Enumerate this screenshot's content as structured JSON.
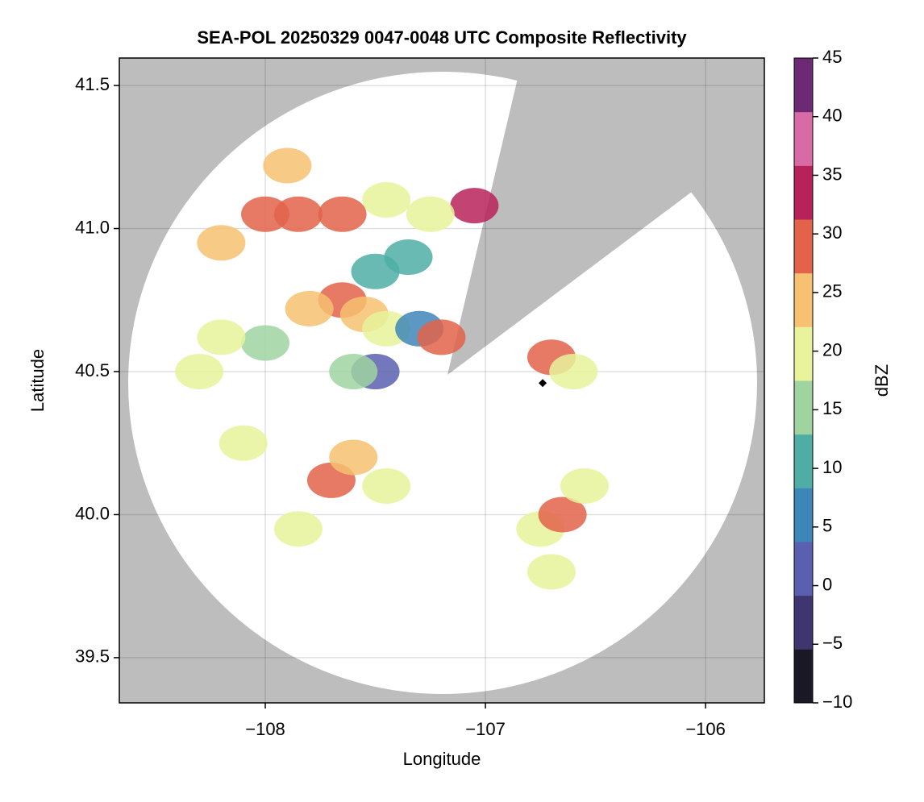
{
  "chart_data": {
    "type": "scatter",
    "title": "SEA-POL 20250329 0047-0048 UTC Composite Reflectivity",
    "x_label": "Longitude",
    "y_label": "Latitude",
    "x": [
      -107.05,
      -107.25,
      -107.45,
      -107.65,
      -107.85,
      -108.0,
      -108.2,
      -107.9,
      -107.35,
      -107.5,
      -107.65,
      -107.55,
      -107.8,
      -107.45,
      -107.5,
      -107.3,
      -107.2,
      -107.6,
      -108.0,
      -108.3,
      -108.2,
      -107.7,
      -107.6,
      -107.85,
      -107.45,
      -108.1,
      -106.7,
      -106.6,
      -106.75,
      -106.65,
      -106.7,
      -106.55
    ],
    "y": [
      41.08,
      41.05,
      41.1,
      41.05,
      41.05,
      41.05,
      40.95,
      41.22,
      40.9,
      40.85,
      40.75,
      40.7,
      40.72,
      40.65,
      40.5,
      40.65,
      40.62,
      40.5,
      40.6,
      40.5,
      40.62,
      40.12,
      40.2,
      39.95,
      40.1,
      40.25,
      40.55,
      40.5,
      39.95,
      40.0,
      39.8,
      40.1
    ],
    "values": [
      32,
      22,
      18,
      28,
      30,
      28,
      24,
      24,
      12,
      12,
      28,
      26,
      24,
      20,
      2,
      8,
      30,
      14,
      16,
      20,
      18,
      28,
      24,
      22,
      18,
      20,
      28,
      20,
      22,
      30,
      20,
      18
    ],
    "xlim": [
      -108.663,
      -105.733
    ],
    "ylim": [
      39.342,
      41.596
    ],
    "xticks": [
      {
        "value": -108,
        "label": "−108"
      },
      {
        "value": -107,
        "label": "−107"
      },
      {
        "value": -106,
        "label": "−106"
      }
    ],
    "yticks": [
      39.5,
      40.0,
      40.5,
      41.0,
      41.5
    ],
    "grid": true,
    "radar_site": {
      "x": -106.74,
      "y": 40.46
    },
    "colorbar": {
      "label": "dBZ",
      "lim": [
        -10,
        45
      ],
      "ticks": [
        {
          "value": -10,
          "label": "−10"
        },
        {
          "value": -5,
          "label": "−5"
        },
        0,
        5,
        10,
        15,
        20,
        25,
        30,
        35,
        40,
        45
      ],
      "colors": [
        "#1a1824",
        "#3f3670",
        "#5a5fb0",
        "#3f86b8",
        "#4eaea6",
        "#9fd3a0",
        "#e8f39b",
        "#f6c171",
        "#e2634a",
        "#b8225a",
        "#d86aa6",
        "#6b2a73"
      ]
    }
  }
}
